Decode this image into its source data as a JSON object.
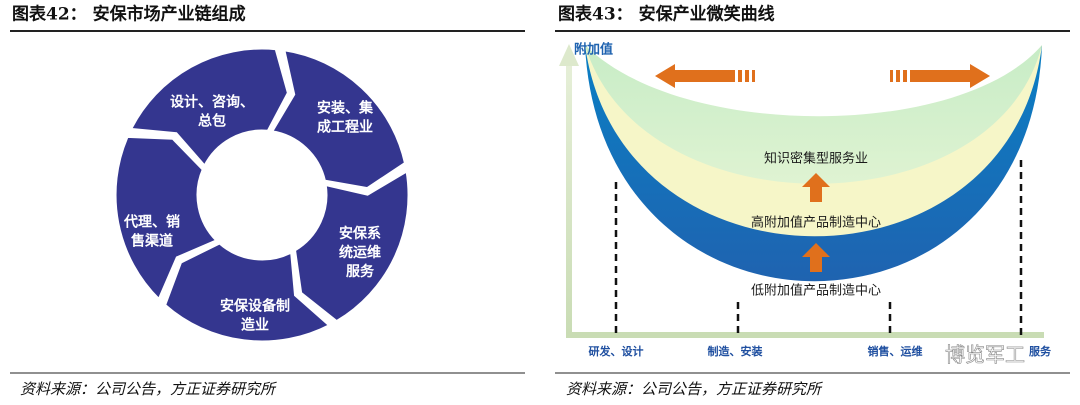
{
  "figures": [
    {
      "title": "图表42：  安保市场产业链组成",
      "source": "资料来源：公司公告，方正证券研究所",
      "segments": [
        {
          "lines": [
            "设计、咨询、",
            "总包"
          ]
        },
        {
          "lines": [
            "安装、集",
            "成工程业"
          ]
        },
        {
          "lines": [
            "安保系",
            "统运维",
            "服务"
          ]
        },
        {
          "lines": [
            "安保设备制",
            "造业"
          ]
        },
        {
          "lines": [
            "代理、销",
            "售渠道"
          ]
        }
      ]
    },
    {
      "title": "图表43：  安保产业微笑曲线",
      "source": "资料来源：公司公告，方正证券研究所",
      "y_axis_label": "附加值",
      "bands": [
        "知识密集型服务业",
        "高附加值产品制造中心",
        "低附加值产品制造中心"
      ],
      "x_labels": [
        "研发、设计",
        "制造、安装",
        "销售、运维",
        "服务"
      ]
    }
  ],
  "watermark": "博览军工"
}
